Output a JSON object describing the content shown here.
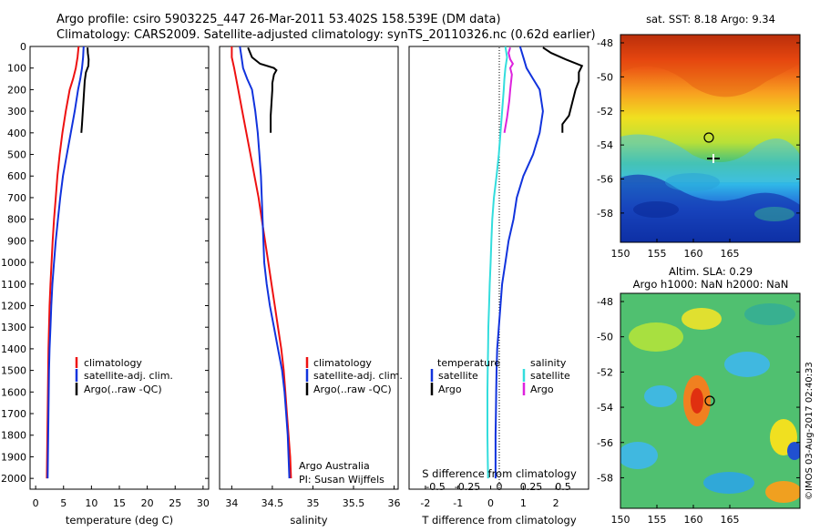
{
  "title": {
    "line1": "Argo profile: csiro 5903225_447 26-Mar-2011 53.402S 158.539E (DM data)",
    "line2": "Climatology: CARS2009. Satellite-adjusted climatology: synTS_20110326.nc (0.62d earlier)"
  },
  "colors": {
    "climatology": "#ee1111",
    "satellite": "#1133dd",
    "argo": "#000000",
    "satellite_s": "#33dddd",
    "argo_s": "#dd22dd"
  },
  "depth_axis": {
    "ticks": [
      "0",
      "100",
      "200",
      "300",
      "400",
      "500",
      "600",
      "700",
      "800",
      "900",
      "1000",
      "1100",
      "1200",
      "1300",
      "1400",
      "1500",
      "1600",
      "1700",
      "1800",
      "1900",
      "2000"
    ],
    "ylim": [
      0,
      2050
    ],
    "reversed": true
  },
  "temperature_panel": {
    "xlabel": "temperature (deg C)",
    "xticks": [
      "0",
      "5",
      "10",
      "15",
      "20",
      "25",
      "30"
    ],
    "legend": [
      "climatology",
      "satellite-adj. clim.",
      "Argo(..raw -QC)"
    ]
  },
  "salinity_panel": {
    "xlabel": "salinity",
    "xticks": [
      "34",
      "34.5",
      "35",
      "35.5",
      "36"
    ],
    "legend": [
      "climatology",
      "satellite-adj. clim.",
      "Argo(..raw -QC)"
    ],
    "note1": "Argo Australia",
    "note2": "PI: Susan Wijffels"
  },
  "diff_panel": {
    "xlabel": "T difference from climatology",
    "xticks": [
      "-2",
      "-1",
      "0",
      "1",
      "2"
    ],
    "top_label": "S difference from climatology",
    "top_ticks": [
      "-0.5",
      "-0.25",
      "0",
      "0.25",
      "0.5"
    ],
    "legend_t_title": "temperature",
    "legend_s_title": "salinity",
    "legend_t": [
      "satellite",
      "Argo"
    ],
    "legend_s": [
      "satellite",
      "Argo"
    ]
  },
  "map1": {
    "title": "sat. SST: 8.18 Argo: 9.34",
    "yticks": [
      "-48",
      "-50",
      "-52",
      "-54",
      "-56",
      "-58"
    ],
    "xticks": [
      "150",
      "155",
      "160",
      "165"
    ]
  },
  "map2": {
    "title1": "Altim. SLA: 0.29",
    "title2": "Argo h1000: NaN h2000: NaN",
    "yticks": [
      "-48",
      "-50",
      "-52",
      "-54",
      "-56",
      "-58"
    ],
    "xticks": [
      "150",
      "155",
      "160",
      "165"
    ],
    "credit": "©IMOS 03-Aug-2017 02:40:33"
  },
  "chart_data": [
    {
      "type": "line",
      "title": "",
      "xlabel": "temperature (deg C)",
      "ylabel": "",
      "xlim": [
        -1,
        31
      ],
      "ylim": [
        2050,
        0
      ],
      "series": [
        {
          "name": "climatology",
          "color": "#ee1111",
          "points": [
            [
              7.7,
              0
            ],
            [
              7.5,
              50
            ],
            [
              7.2,
              100
            ],
            [
              6.7,
              150
            ],
            [
              6.1,
              200
            ],
            [
              5.4,
              300
            ],
            [
              4.8,
              400
            ],
            [
              4.3,
              500
            ],
            [
              3.9,
              600
            ],
            [
              3.6,
              700
            ],
            [
              3.3,
              800
            ],
            [
              3.05,
              900
            ],
            [
              2.85,
              1000
            ],
            [
              2.65,
              1100
            ],
            [
              2.5,
              1200
            ],
            [
              2.4,
              1300
            ],
            [
              2.3,
              1400
            ],
            [
              2.25,
              1500
            ],
            [
              2.2,
              1600
            ],
            [
              2.15,
              1700
            ],
            [
              2.1,
              1800
            ],
            [
              2.05,
              1900
            ],
            [
              2.0,
              2000
            ]
          ]
        },
        {
          "name": "satellite-adj. clim.",
          "color": "#1133dd",
          "points": [
            [
              8.6,
              0
            ],
            [
              8.5,
              50
            ],
            [
              8.3,
              100
            ],
            [
              8.0,
              150
            ],
            [
              7.6,
              200
            ],
            [
              7.0,
              300
            ],
            [
              6.3,
              400
            ],
            [
              5.6,
              500
            ],
            [
              4.9,
              600
            ],
            [
              4.4,
              700
            ],
            [
              4.0,
              800
            ],
            [
              3.6,
              900
            ],
            [
              3.3,
              1000
            ],
            [
              3.0,
              1100
            ],
            [
              2.8,
              1200
            ],
            [
              2.65,
              1300
            ],
            [
              2.5,
              1400
            ],
            [
              2.4,
              1500
            ],
            [
              2.35,
              1600
            ],
            [
              2.3,
              1700
            ],
            [
              2.25,
              1800
            ],
            [
              2.2,
              1900
            ],
            [
              2.15,
              2000
            ]
          ]
        },
        {
          "name": "Argo(..raw -QC)",
          "color": "#000000",
          "points": [
            [
              9.3,
              5
            ],
            [
              9.35,
              30
            ],
            [
              9.5,
              60
            ],
            [
              9.45,
              90
            ],
            [
              9.0,
              120
            ],
            [
              8.8,
              160
            ],
            [
              8.7,
              200
            ],
            [
              8.6,
              240
            ],
            [
              8.5,
              280
            ],
            [
              8.4,
              320
            ],
            [
              8.3,
              360
            ],
            [
              8.2,
              400
            ]
          ]
        }
      ]
    },
    {
      "type": "line",
      "title": "",
      "xlabel": "salinity",
      "ylabel": "",
      "xlim": [
        33.85,
        36.05
      ],
      "ylim": [
        2050,
        0
      ],
      "series": [
        {
          "name": "climatology",
          "color": "#ee1111",
          "points": [
            [
              34.0,
              0
            ],
            [
              34.0,
              50
            ],
            [
              34.03,
              100
            ],
            [
              34.08,
              200
            ],
            [
              34.13,
              300
            ],
            [
              34.18,
              400
            ],
            [
              34.23,
              500
            ],
            [
              34.28,
              600
            ],
            [
              34.33,
              700
            ],
            [
              34.37,
              800
            ],
            [
              34.41,
              900
            ],
            [
              34.45,
              1000
            ],
            [
              34.49,
              1100
            ],
            [
              34.53,
              1200
            ],
            [
              34.57,
              1300
            ],
            [
              34.61,
              1400
            ],
            [
              34.64,
              1500
            ],
            [
              34.66,
              1600
            ],
            [
              34.68,
              1700
            ],
            [
              34.7,
              1800
            ],
            [
              34.72,
              1900
            ],
            [
              34.73,
              2000
            ]
          ]
        },
        {
          "name": "satellite-adj. clim.",
          "color": "#1133dd",
          "points": [
            [
              34.1,
              0
            ],
            [
              34.12,
              50
            ],
            [
              34.14,
              100
            ],
            [
              34.19,
              150
            ],
            [
              34.25,
              200
            ],
            [
              34.29,
              300
            ],
            [
              34.32,
              400
            ],
            [
              34.34,
              500
            ],
            [
              34.36,
              600
            ],
            [
              34.37,
              700
            ],
            [
              34.38,
              800
            ],
            [
              34.39,
              900
            ],
            [
              34.4,
              1000
            ],
            [
              34.43,
              1100
            ],
            [
              34.47,
              1200
            ],
            [
              34.52,
              1300
            ],
            [
              34.57,
              1400
            ],
            [
              34.62,
              1500
            ],
            [
              34.65,
              1600
            ],
            [
              34.67,
              1700
            ],
            [
              34.69,
              1800
            ],
            [
              34.7,
              1900
            ],
            [
              34.71,
              2000
            ]
          ]
        },
        {
          "name": "Argo(..raw -QC)",
          "color": "#000000",
          "points": [
            [
              34.2,
              5
            ],
            [
              34.25,
              50
            ],
            [
              34.35,
              80
            ],
            [
              34.52,
              100
            ],
            [
              34.55,
              110
            ],
            [
              34.52,
              130
            ],
            [
              34.5,
              170
            ],
            [
              34.5,
              200
            ],
            [
              34.49,
              260
            ],
            [
              34.48,
              320
            ],
            [
              34.48,
              400
            ]
          ]
        }
      ]
    },
    {
      "type": "line",
      "title": "",
      "xlabel": "T difference from climatology",
      "ylabel": "",
      "xlim": [
        -2.5,
        3.0
      ],
      "ylim": [
        2050,
        0
      ],
      "series": [
        {
          "name": "temperature satellite",
          "color": "#1133dd",
          "points": [
            [
              0.9,
              0
            ],
            [
              1.0,
              50
            ],
            [
              1.1,
              100
            ],
            [
              1.3,
              150
            ],
            [
              1.5,
              200
            ],
            [
              1.6,
              300
            ],
            [
              1.5,
              400
            ],
            [
              1.3,
              500
            ],
            [
              1.0,
              600
            ],
            [
              0.8,
              700
            ],
            [
              0.7,
              800
            ],
            [
              0.55,
              900
            ],
            [
              0.45,
              1000
            ],
            [
              0.35,
              1100
            ],
            [
              0.3,
              1200
            ],
            [
              0.25,
              1300
            ],
            [
              0.2,
              1400
            ],
            [
              0.18,
              1500
            ],
            [
              0.17,
              1600
            ],
            [
              0.16,
              1700
            ],
            [
              0.15,
              1800
            ],
            [
              0.15,
              1900
            ],
            [
              0.15,
              2000
            ]
          ]
        },
        {
          "name": "temperature Argo",
          "color": "#000000",
          "points": [
            [
              1.6,
              5
            ],
            [
              1.85,
              30
            ],
            [
              2.3,
              60
            ],
            [
              2.8,
              90
            ],
            [
              2.7,
              120
            ],
            [
              2.7,
              160
            ],
            [
              2.6,
              200
            ],
            [
              2.5,
              260
            ],
            [
              2.4,
              320
            ],
            [
              2.2,
              360
            ],
            [
              2.2,
              400
            ]
          ]
        },
        {
          "name": "salinity satellite",
          "color": "#33dddd",
          "points": [
            [
              0.45,
              0
            ],
            [
              0.5,
              50
            ],
            [
              0.45,
              100
            ],
            [
              0.42,
              150
            ],
            [
              0.4,
              200
            ],
            [
              0.35,
              300
            ],
            [
              0.3,
              400
            ],
            [
              0.25,
              500
            ],
            [
              0.18,
              600
            ],
            [
              0.1,
              700
            ],
            [
              0.05,
              800
            ],
            [
              0.02,
              900
            ],
            [
              0.0,
              1000
            ],
            [
              -0.03,
              1100
            ],
            [
              -0.05,
              1200
            ],
            [
              -0.07,
              1300
            ],
            [
              -0.08,
              1400
            ],
            [
              -0.09,
              1500
            ],
            [
              -0.1,
              1600
            ],
            [
              -0.1,
              1700
            ],
            [
              -0.1,
              1800
            ],
            [
              -0.09,
              1900
            ],
            [
              -0.08,
              2000
            ]
          ]
        },
        {
          "name": "salinity Argo",
          "color": "#dd22dd",
          "points": [
            [
              0.6,
              5
            ],
            [
              0.55,
              30
            ],
            [
              0.6,
              60
            ],
            [
              0.68,
              80
            ],
            [
              0.6,
              100
            ],
            [
              0.65,
              130
            ],
            [
              0.6,
              200
            ],
            [
              0.57,
              250
            ],
            [
              0.5,
              330
            ],
            [
              0.42,
              400
            ]
          ]
        }
      ]
    }
  ]
}
